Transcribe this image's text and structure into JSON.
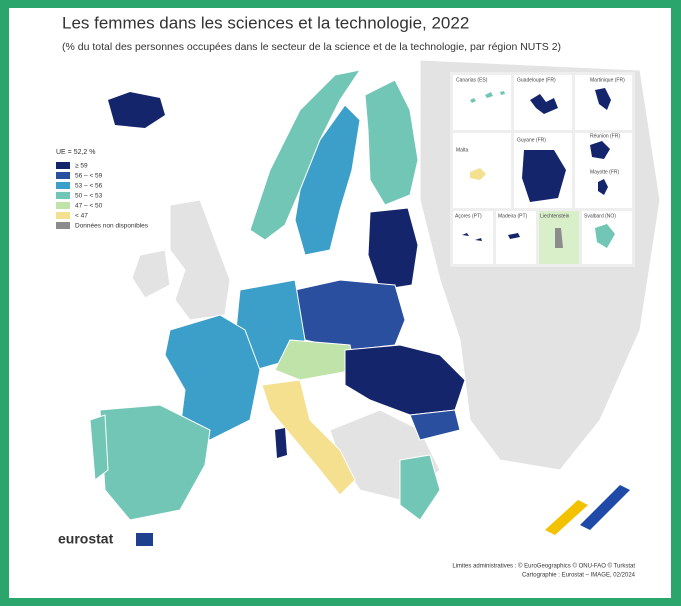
{
  "title": "Les femmes dans les sciences et la technologie, 2022",
  "subtitle": "(% du total des personnes occupées dans le secteur de la science et de la technologie, par région NUTS 2)",
  "legend": {
    "heading": "UE = 52,2 %",
    "items": [
      {
        "label": "≥ 59",
        "color": "#14256b"
      },
      {
        "label": "56 – < 59",
        "color": "#2a4f9e"
      },
      {
        "label": "53 – < 56",
        "color": "#3c9fc9"
      },
      {
        "label": "50 – < 53",
        "color": "#72c6b6"
      },
      {
        "label": "47 – < 50",
        "color": "#bfe3a9"
      },
      {
        "label": "< 47",
        "color": "#f4e08e"
      },
      {
        "label": "Données non disponibles",
        "color": "#8c8c8c"
      }
    ]
  },
  "insets": [
    "Canarias (ES)",
    "Guadeloupe (FR)",
    "Martinique (FR)",
    "Réunion (FR)",
    "Guyane (FR)",
    "Mayotte (FR)",
    "Malta",
    "Açores (PT)",
    "Madeira (PT)",
    "Liechtenstein",
    "Svalbard (NO)"
  ],
  "logo": "eurostat",
  "credits": [
    "Limites administratives : © EuroGeographics © ONU-FAO © Turkstat",
    "Cartographie : Eurostat – IMAGE, 02/2024"
  ]
}
